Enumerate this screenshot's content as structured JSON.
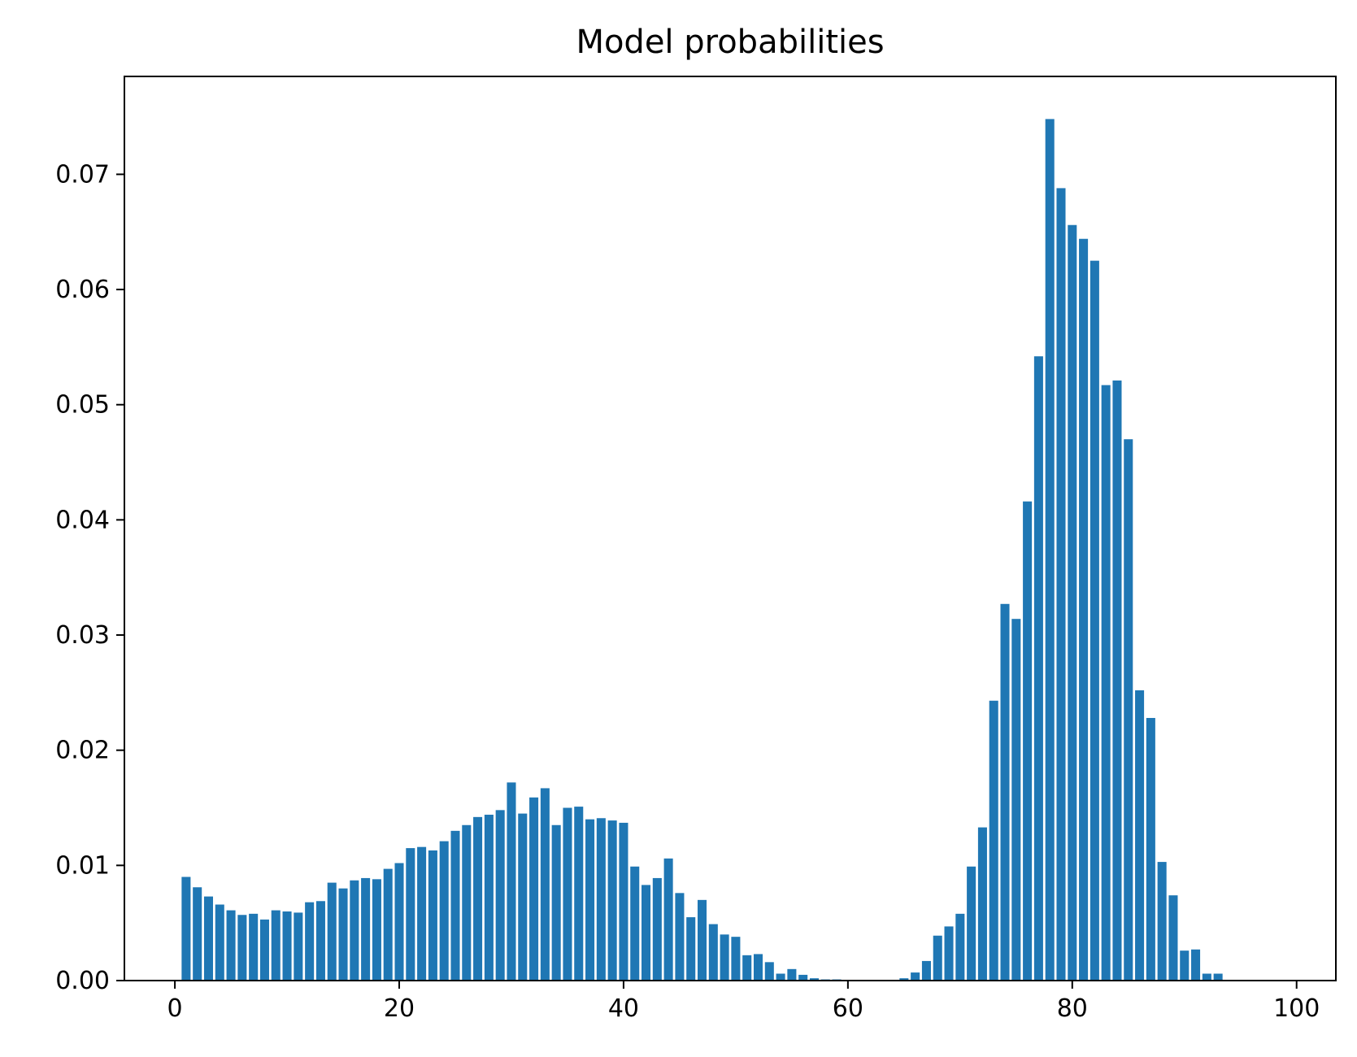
{
  "chart_data": {
    "type": "bar",
    "title": "Model probabilities",
    "xlabel": "",
    "ylabel": "",
    "xlim": [
      -4.5,
      103.5
    ],
    "ylim": [
      0,
      0.0785
    ],
    "grid": false,
    "bar_color": "#1f77b4",
    "x_ticks": [
      {
        "value": 0,
        "label": "0"
      },
      {
        "value": 20,
        "label": "20"
      },
      {
        "value": 40,
        "label": "40"
      },
      {
        "value": 60,
        "label": "60"
      },
      {
        "value": 80,
        "label": "80"
      },
      {
        "value": 100,
        "label": "100"
      }
    ],
    "y_ticks": [
      {
        "value": 0,
        "label": "0.00"
      },
      {
        "value": 0.01,
        "label": "0.01"
      },
      {
        "value": 0.02,
        "label": "0.02"
      },
      {
        "value": 0.03,
        "label": "0.03"
      },
      {
        "value": 0.04,
        "label": "0.04"
      },
      {
        "value": 0.05,
        "label": "0.05"
      },
      {
        "value": 0.06,
        "label": "0.06"
      },
      {
        "value": 0.07,
        "label": "0.07"
      }
    ],
    "x": [
      1,
      2,
      3,
      4,
      5,
      6,
      7,
      8,
      9,
      10,
      11,
      12,
      13,
      14,
      15,
      16,
      17,
      18,
      19,
      20,
      21,
      22,
      23,
      24,
      25,
      26,
      27,
      28,
      29,
      30,
      31,
      32,
      33,
      34,
      35,
      36,
      37,
      38,
      39,
      40,
      41,
      42,
      43,
      44,
      45,
      46,
      47,
      48,
      49,
      50,
      51,
      52,
      53,
      54,
      55,
      56,
      57,
      58,
      59,
      60,
      61,
      62,
      63,
      64,
      65,
      66,
      67,
      68,
      69,
      70,
      71,
      72,
      73,
      74,
      75,
      76,
      77,
      78,
      79,
      80,
      81,
      82,
      83,
      84,
      85,
      86,
      87,
      88,
      89,
      90,
      91,
      92,
      93
    ],
    "values": [
      0.009,
      0.0081,
      0.0073,
      0.0066,
      0.0061,
      0.0057,
      0.0058,
      0.0053,
      0.0061,
      0.006,
      0.0059,
      0.0068,
      0.0069,
      0.0085,
      0.008,
      0.0087,
      0.0089,
      0.0088,
      0.0097,
      0.0102,
      0.0115,
      0.0116,
      0.0113,
      0.0121,
      0.013,
      0.0135,
      0.0142,
      0.0144,
      0.0148,
      0.0172,
      0.0145,
      0.0159,
      0.0167,
      0.0135,
      0.015,
      0.0151,
      0.014,
      0.0141,
      0.0139,
      0.0137,
      0.0099,
      0.0083,
      0.0089,
      0.0106,
      0.0076,
      0.0055,
      0.007,
      0.0049,
      0.004,
      0.0038,
      0.0022,
      0.0023,
      0.0016,
      0.0006,
      0.001,
      0.0005,
      0.0002,
      0.0001,
      0.0001,
      0.0,
      0.0,
      0.0,
      0.0,
      0.0,
      0.0002,
      0.0007,
      0.0017,
      0.0039,
      0.0047,
      0.0058,
      0.0099,
      0.0133,
      0.0243,
      0.0327,
      0.0314,
      0.0416,
      0.0542,
      0.0748,
      0.0688,
      0.0656,
      0.0644,
      0.0625,
      0.0517,
      0.0521,
      0.047,
      0.0252,
      0.0228,
      0.0103,
      0.0074,
      0.0026,
      0.0027,
      0.0006,
      0.0006
    ]
  }
}
